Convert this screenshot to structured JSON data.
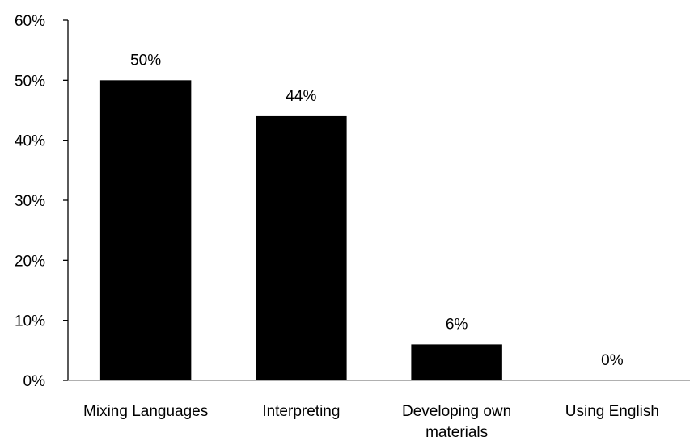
{
  "chart_data": {
    "type": "bar",
    "categories": [
      "Mixing Languages",
      "Interpreting",
      "Developing own materials",
      "Using English"
    ],
    "category_lines": [
      [
        "Mixing Languages"
      ],
      [
        "Interpreting"
      ],
      [
        "Developing own",
        "materials"
      ],
      [
        "Using English"
      ]
    ],
    "values": [
      50,
      44,
      6,
      0
    ],
    "data_labels": [
      "50%",
      "44%",
      "6%",
      "0%"
    ],
    "ylim": [
      0,
      60
    ],
    "yticks": [
      0,
      10,
      20,
      30,
      40,
      50,
      60
    ],
    "ytick_labels": [
      "0%",
      "10%",
      "20%",
      "30%",
      "40%",
      "50%",
      "60%"
    ],
    "title": "",
    "xlabel": "",
    "ylabel": "",
    "grid": false,
    "legend": false,
    "colors": {
      "bar": "#000000",
      "axis": "#000000",
      "baseline": "#808080",
      "background": "#ffffff"
    }
  }
}
